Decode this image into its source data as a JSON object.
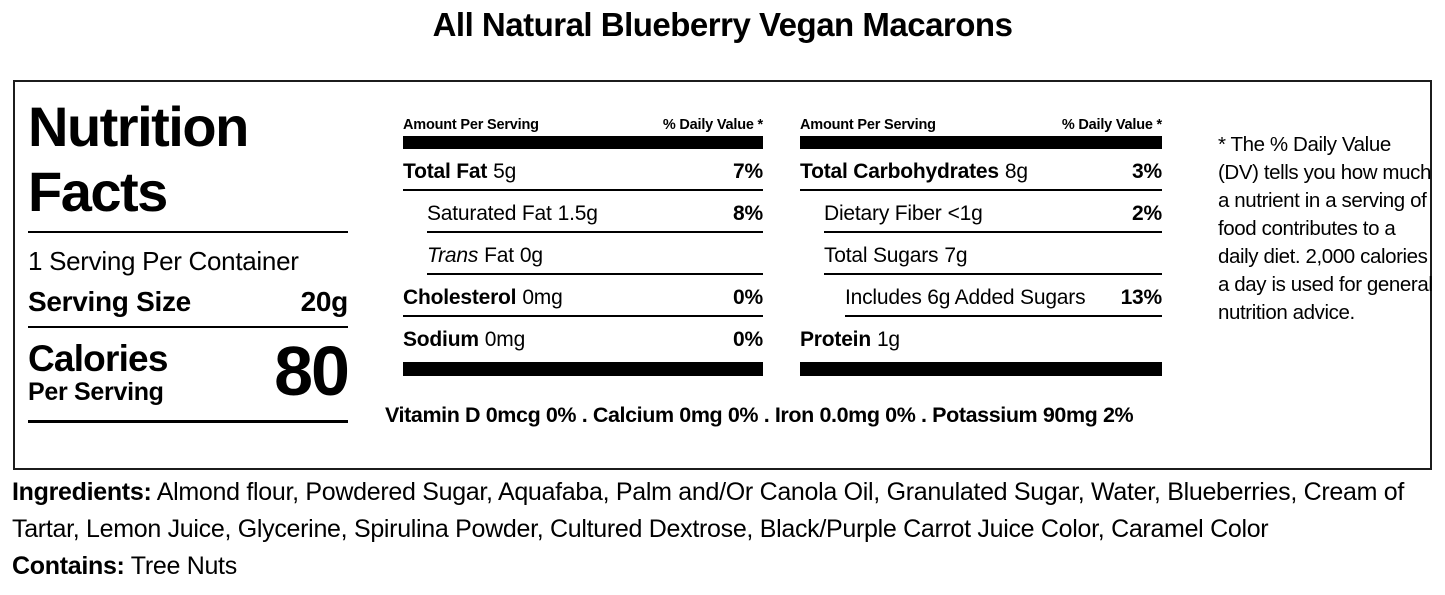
{
  "colors": {
    "background": "#ffffff",
    "text": "#000000",
    "rule": "#000000"
  },
  "title": "All Natural Blueberry Vegan Macarons",
  "nutrition_panel": {
    "heading": "Nutrition\nFacts",
    "servings_per_container": "1 Serving Per Container",
    "serving_size": {
      "label": "Serving Size",
      "value": "20g"
    },
    "calories": {
      "label": "Calories",
      "sublabel": "Per Serving",
      "value": "80"
    },
    "fat_column": {
      "header_left": "Amount Per Serving",
      "header_right": "% Daily Value *",
      "rows": [
        {
          "label": "Total Fat",
          "amount": "5g",
          "dv": "7%"
        },
        {
          "label": "Saturated Fat",
          "amount": "1.5g",
          "dv": "8%"
        },
        {
          "label_italic": "Trans",
          "label": "Fat",
          "amount": "0g"
        },
        {
          "label": "Cholesterol",
          "amount": "0mg",
          "dv": "0%"
        },
        {
          "label": "Sodium",
          "amount": "0mg",
          "dv": "0%"
        }
      ]
    },
    "carb_column": {
      "header_left": "Amount Per Serving",
      "header_right": "% Daily Value *",
      "rows": [
        {
          "label": "Total Carbohydrates",
          "amount": "8g",
          "dv": "3%"
        },
        {
          "label": "Dietary Fiber",
          "amount": "<1g",
          "dv": "2%"
        },
        {
          "label": "Total Sugars",
          "amount": "7g"
        },
        {
          "label": "Includes 6g Added Sugars",
          "dv": "13%"
        },
        {
          "label": "Protein",
          "amount": "1g"
        }
      ]
    },
    "micronutrients": "Vitamin D 0mcg 0% . Calcium 0mg 0% . Iron 0.0mg 0% . Potassium 90mg 2%",
    "footnote": "* The % Daily Value (DV) tells you how much a nutrient in a serving of food contributes to a daily diet. 2,000 calories a day is used for general nutrition advice."
  },
  "ingredients": {
    "label": "Ingredients:",
    "text": " Almond flour, Powdered Sugar, Aquafaba, Palm and/Or Canola Oil, Granulated Sugar, Water, Blueberries, Cream of Tartar, Lemon Juice, Glycerine, Spirulina Powder, Cultured Dextrose, Black/Purple Carrot Juice Color, Caramel Color"
  },
  "contains": {
    "label": "Contains:",
    "text": " Tree Nuts"
  }
}
